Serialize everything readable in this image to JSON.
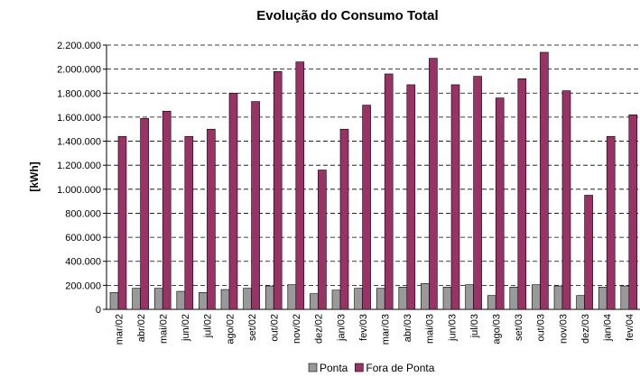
{
  "chart_data": {
    "type": "bar",
    "title": "Evolução do Consumo Total",
    "y_label": "[kWh]",
    "categories": [
      "mar/02",
      "abr/02",
      "mai/02",
      "jun/02",
      "jul/02",
      "ago/02",
      "set/02",
      "out/02",
      "nov/02",
      "dez/02",
      "jan/03",
      "fev/03",
      "mar/03",
      "abr/03",
      "mai/03",
      "jun/03",
      "jul/03",
      "ago/03",
      "set/03",
      "out/03",
      "nov/03",
      "dez/03",
      "jan/04",
      "fev/04"
    ],
    "series": [
      {
        "name": "Ponta",
        "color": "#999999",
        "values": [
          140000,
          175000,
          175000,
          150000,
          140000,
          165000,
          175000,
          195000,
          205000,
          130000,
          160000,
          175000,
          175000,
          185000,
          215000,
          185000,
          205000,
          115000,
          185000,
          205000,
          195000,
          115000,
          185000,
          195000
        ]
      },
      {
        "name": "Fora de Ponta",
        "color": "#993366",
        "values": [
          1440000,
          1590000,
          1650000,
          1440000,
          1500000,
          1800000,
          1730000,
          1980000,
          2060000,
          1160000,
          1500000,
          1700000,
          1960000,
          1870000,
          2090000,
          1870000,
          1940000,
          1760000,
          1920000,
          2140000,
          1820000,
          950000,
          1440000,
          1620000
        ]
      }
    ],
    "ylim": [
      0,
      2200000
    ],
    "yticks": [
      0,
      {
        "value": 200000,
        "label": "200.000"
      },
      {
        "value": 400000,
        "label": "400.000"
      },
      {
        "value": 600000,
        "label": "600.000"
      },
      {
        "value": 800000,
        "label": "800.000"
      },
      {
        "value": 1000000,
        "label": "1.000.000"
      },
      {
        "value": 1200000,
        "label": "1.200.000"
      },
      {
        "value": 1400000,
        "label": "1.400.000"
      },
      {
        "value": 1600000,
        "label": "1.600.000"
      },
      {
        "value": 1800000,
        "label": "1.800.000"
      },
      {
        "value": 2000000,
        "label": "2.000.000"
      },
      {
        "value": 2200000,
        "label": "2.200.000"
      }
    ],
    "grid": true,
    "legend": "bottom"
  }
}
